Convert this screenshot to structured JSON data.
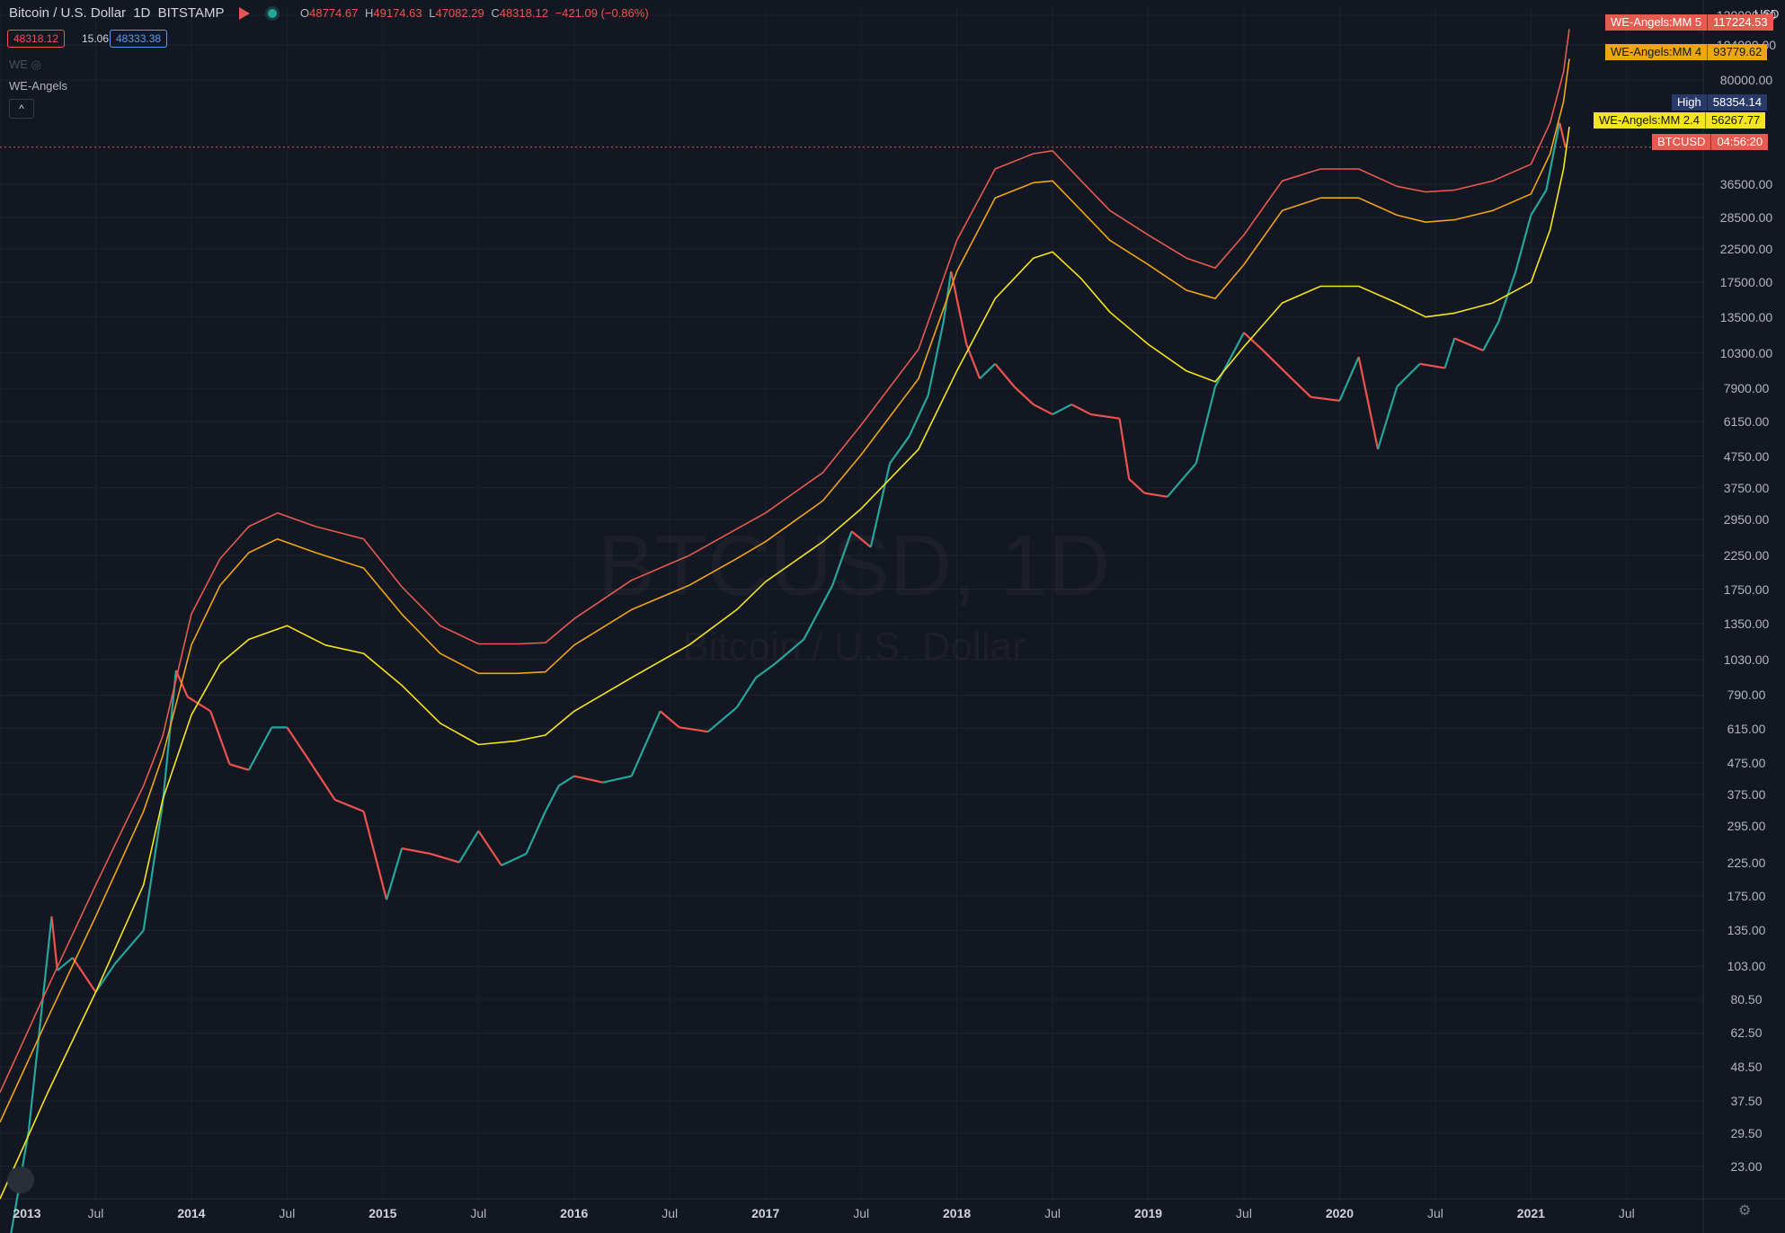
{
  "header": {
    "symbol_title": "Bitcoin / U.S. Dollar",
    "interval": "1D",
    "exchange": "BITSTAMP",
    "ohlc": {
      "open_label": "O",
      "open": "48774.67",
      "high_label": "H",
      "high": "49174.63",
      "low_label": "L",
      "low": "47082.29",
      "close_label": "C",
      "close": "48318.12",
      "change": "−421.09 (−0.86%)"
    },
    "bid": "48318.12",
    "spread": "15.06",
    "ask": "48333.38",
    "indicator_short": "WE",
    "indicator_name": "WE-Angels",
    "collapse_icon": "^"
  },
  "watermark": {
    "line1": "BTCUSD, 1D",
    "line2": "Bitcoin / U.S. Dollar"
  },
  "price_scale": {
    "currency": "USD",
    "labels": [
      "130000.00",
      "104000.00",
      "80000.00",
      "36500.00",
      "28500.00",
      "22500.00",
      "17500.00",
      "13500.00",
      "10300.00",
      "7900.00",
      "6150.00",
      "4750.00",
      "3750.00",
      "2950.00",
      "2250.00",
      "1750.00",
      "1350.00",
      "1030.00",
      "790.00",
      "615.00",
      "475.00",
      "375.00",
      "295.00",
      "225.00",
      "175.00",
      "135.00",
      "103.00",
      "80.50",
      "62.50",
      "48.50",
      "37.50",
      "29.50",
      "23.00"
    ]
  },
  "time_scale": {
    "labels": [
      {
        "text": "2013",
        "year": true,
        "t": 2013.0
      },
      {
        "text": "Jul",
        "year": false,
        "t": 2013.5
      },
      {
        "text": "2014",
        "year": true,
        "t": 2014.0
      },
      {
        "text": "Jul",
        "year": false,
        "t": 2014.5
      },
      {
        "text": "2015",
        "year": true,
        "t": 2015.0
      },
      {
        "text": "Jul",
        "year": false,
        "t": 2015.5
      },
      {
        "text": "2016",
        "year": true,
        "t": 2016.0
      },
      {
        "text": "Jul",
        "year": false,
        "t": 2016.5
      },
      {
        "text": "2017",
        "year": true,
        "t": 2017.0
      },
      {
        "text": "Jul",
        "year": false,
        "t": 2017.5
      },
      {
        "text": "2018",
        "year": true,
        "t": 2018.0
      },
      {
        "text": "Jul",
        "year": false,
        "t": 2018.5
      },
      {
        "text": "2019",
        "year": true,
        "t": 2019.0
      },
      {
        "text": "Jul",
        "year": false,
        "t": 2019.5
      },
      {
        "text": "2020",
        "year": true,
        "t": 2020.0
      },
      {
        "text": "Jul",
        "year": false,
        "t": 2020.5
      },
      {
        "text": "2021",
        "year": true,
        "t": 2021.0
      },
      {
        "text": "Jul",
        "year": false,
        "t": 2021.5
      }
    ]
  },
  "tags": {
    "mm5": {
      "name": "WE-Angels:MM 5",
      "value": "117224.53"
    },
    "mm4": {
      "name": "WE-Angels:MM 4",
      "value": "93779.62"
    },
    "high": {
      "name": "High",
      "value": "58354.14"
    },
    "mm24": {
      "name": "WE-Angels:MM 2.4",
      "value": "56267.77"
    },
    "btc": {
      "name": "BTCUSD",
      "value": "04:56:20"
    }
  },
  "colors": {
    "background": "#131722",
    "grid": "#1e222d",
    "mm5": "#e55b50",
    "mm4": "#f0a518",
    "mm24": "#f5e51f",
    "candle_up": "#26a69a",
    "candle_down": "#ef5350",
    "price_line": "#e55b50"
  },
  "chart_data": {
    "type": "line",
    "title": "Bitcoin / U.S. Dollar",
    "scale": "log",
    "ylim": [
      18,
      140000
    ],
    "xlim": [
      2013.0,
      2021.9
    ],
    "grid": true,
    "series": [
      {
        "name": "BTCUSD",
        "role": "price",
        "points": [
          [
            2013.05,
            13
          ],
          [
            2013.15,
            30
          ],
          [
            2013.27,
            150
          ],
          [
            2013.3,
            100
          ],
          [
            2013.38,
            110
          ],
          [
            2013.5,
            85
          ],
          [
            2013.6,
            105
          ],
          [
            2013.75,
            135
          ],
          [
            2013.85,
            350
          ],
          [
            2013.92,
            950
          ],
          [
            2013.98,
            780
          ],
          [
            2014.1,
            700
          ],
          [
            2014.2,
            470
          ],
          [
            2014.3,
            450
          ],
          [
            2014.42,
            620
          ],
          [
            2014.5,
            620
          ],
          [
            2014.6,
            500
          ],
          [
            2014.75,
            360
          ],
          [
            2014.9,
            330
          ],
          [
            2015.02,
            170
          ],
          [
            2015.1,
            250
          ],
          [
            2015.25,
            240
          ],
          [
            2015.4,
            225
          ],
          [
            2015.5,
            285
          ],
          [
            2015.62,
            220
          ],
          [
            2015.75,
            240
          ],
          [
            2015.85,
            330
          ],
          [
            2015.92,
            400
          ],
          [
            2016.0,
            430
          ],
          [
            2016.15,
            410
          ],
          [
            2016.3,
            430
          ],
          [
            2016.45,
            700
          ],
          [
            2016.55,
            620
          ],
          [
            2016.7,
            600
          ],
          [
            2016.85,
            720
          ],
          [
            2016.95,
            900
          ],
          [
            2017.05,
            1000
          ],
          [
            2017.2,
            1200
          ],
          [
            2017.35,
            1800
          ],
          [
            2017.45,
            2700
          ],
          [
            2017.55,
            2400
          ],
          [
            2017.65,
            4500
          ],
          [
            2017.75,
            5500
          ],
          [
            2017.85,
            7500
          ],
          [
            2017.93,
            13000
          ],
          [
            2017.97,
            19000
          ],
          [
            2018.05,
            11000
          ],
          [
            2018.12,
            8500
          ],
          [
            2018.2,
            9500
          ],
          [
            2018.3,
            8000
          ],
          [
            2018.4,
            7000
          ],
          [
            2018.5,
            6500
          ],
          [
            2018.6,
            7000
          ],
          [
            2018.7,
            6500
          ],
          [
            2018.85,
            6300
          ],
          [
            2018.9,
            4000
          ],
          [
            2018.98,
            3600
          ],
          [
            2019.1,
            3500
          ],
          [
            2019.25,
            4500
          ],
          [
            2019.35,
            8000
          ],
          [
            2019.5,
            12000
          ],
          [
            2019.6,
            10500
          ],
          [
            2019.75,
            8500
          ],
          [
            2019.85,
            7400
          ],
          [
            2020.0,
            7200
          ],
          [
            2020.1,
            10000
          ],
          [
            2020.2,
            5000
          ],
          [
            2020.3,
            8000
          ],
          [
            2020.42,
            9500
          ],
          [
            2020.55,
            9200
          ],
          [
            2020.6,
            11500
          ],
          [
            2020.75,
            10500
          ],
          [
            2020.83,
            13000
          ],
          [
            2020.92,
            19000
          ],
          [
            2021.0,
            29000
          ],
          [
            2021.08,
            35000
          ],
          [
            2021.12,
            47000
          ],
          [
            2021.15,
            58000
          ],
          [
            2021.18,
            48318
          ]
        ]
      },
      {
        "name": "WE-Angels:MM 2.4",
        "points": [
          [
            2013.0,
            18
          ],
          [
            2013.25,
            40
          ],
          [
            2013.5,
            85
          ],
          [
            2013.75,
            190
          ],
          [
            2013.85,
            360
          ],
          [
            2014.0,
            680
          ],
          [
            2014.15,
            1000
          ],
          [
            2014.3,
            1200
          ],
          [
            2014.5,
            1330
          ],
          [
            2014.7,
            1150
          ],
          [
            2014.9,
            1080
          ],
          [
            2015.1,
            850
          ],
          [
            2015.3,
            640
          ],
          [
            2015.5,
            545
          ],
          [
            2015.7,
            560
          ],
          [
            2015.85,
            585
          ],
          [
            2016.0,
            700
          ],
          [
            2016.3,
            900
          ],
          [
            2016.6,
            1150
          ],
          [
            2016.85,
            1500
          ],
          [
            2017.0,
            1850
          ],
          [
            2017.3,
            2500
          ],
          [
            2017.5,
            3200
          ],
          [
            2017.8,
            5000
          ],
          [
            2018.0,
            9000
          ],
          [
            2018.2,
            15500
          ],
          [
            2018.4,
            21000
          ],
          [
            2018.5,
            22000
          ],
          [
            2018.65,
            18000
          ],
          [
            2018.8,
            14000
          ],
          [
            2019.0,
            11000
          ],
          [
            2019.2,
            9000
          ],
          [
            2019.35,
            8300
          ],
          [
            2019.5,
            10800
          ],
          [
            2019.7,
            15000
          ],
          [
            2019.9,
            17000
          ],
          [
            2020.1,
            17000
          ],
          [
            2020.3,
            15000
          ],
          [
            2020.45,
            13500
          ],
          [
            2020.6,
            13900
          ],
          [
            2020.8,
            15000
          ],
          [
            2021.0,
            17500
          ],
          [
            2021.1,
            26000
          ],
          [
            2021.17,
            41000
          ],
          [
            2021.2,
            56267.77
          ]
        ]
      },
      {
        "name": "WE-Angels:MM 4",
        "points": [
          [
            2013.0,
            32
          ],
          [
            2013.25,
            70
          ],
          [
            2013.5,
            150
          ],
          [
            2013.75,
            330
          ],
          [
            2013.85,
            500
          ],
          [
            2014.0,
            1150
          ],
          [
            2014.15,
            1800
          ],
          [
            2014.3,
            2300
          ],
          [
            2014.45,
            2550
          ],
          [
            2014.65,
            2300
          ],
          [
            2014.9,
            2050
          ],
          [
            2015.1,
            1450
          ],
          [
            2015.3,
            1080
          ],
          [
            2015.5,
            930
          ],
          [
            2015.7,
            930
          ],
          [
            2015.85,
            940
          ],
          [
            2016.0,
            1150
          ],
          [
            2016.3,
            1500
          ],
          [
            2016.6,
            1800
          ],
          [
            2016.85,
            2200
          ],
          [
            2017.0,
            2500
          ],
          [
            2017.3,
            3400
          ],
          [
            2017.5,
            4800
          ],
          [
            2017.8,
            8500
          ],
          [
            2018.0,
            19000
          ],
          [
            2018.2,
            33000
          ],
          [
            2018.4,
            37000
          ],
          [
            2018.5,
            37500
          ],
          [
            2018.65,
            30000
          ],
          [
            2018.8,
            24000
          ],
          [
            2019.0,
            20000
          ],
          [
            2019.2,
            16500
          ],
          [
            2019.35,
            15500
          ],
          [
            2019.5,
            20000
          ],
          [
            2019.7,
            30000
          ],
          [
            2019.9,
            33000
          ],
          [
            2020.1,
            33000
          ],
          [
            2020.3,
            29000
          ],
          [
            2020.45,
            27500
          ],
          [
            2020.6,
            28000
          ],
          [
            2020.8,
            30000
          ],
          [
            2021.0,
            34000
          ],
          [
            2021.1,
            46000
          ],
          [
            2021.17,
            68000
          ],
          [
            2021.2,
            93779.62
          ]
        ]
      },
      {
        "name": "WE-Angels:MM 5",
        "points": [
          [
            2013.0,
            40
          ],
          [
            2013.25,
            88
          ],
          [
            2013.5,
            190
          ],
          [
            2013.75,
            400
          ],
          [
            2013.85,
            580
          ],
          [
            2014.0,
            1450
          ],
          [
            2014.15,
            2200
          ],
          [
            2014.3,
            2800
          ],
          [
            2014.45,
            3100
          ],
          [
            2014.65,
            2800
          ],
          [
            2014.9,
            2550
          ],
          [
            2015.1,
            1780
          ],
          [
            2015.3,
            1330
          ],
          [
            2015.5,
            1160
          ],
          [
            2015.7,
            1160
          ],
          [
            2015.85,
            1170
          ],
          [
            2016.0,
            1400
          ],
          [
            2016.3,
            1870
          ],
          [
            2016.6,
            2250
          ],
          [
            2016.85,
            2750
          ],
          [
            2017.0,
            3100
          ],
          [
            2017.3,
            4200
          ],
          [
            2017.5,
            6000
          ],
          [
            2017.8,
            10600
          ],
          [
            2018.0,
            24000
          ],
          [
            2018.2,
            41000
          ],
          [
            2018.4,
            46000
          ],
          [
            2018.5,
            47000
          ],
          [
            2018.65,
            37500
          ],
          [
            2018.8,
            30000
          ],
          [
            2019.0,
            25000
          ],
          [
            2019.2,
            21000
          ],
          [
            2019.35,
            19500
          ],
          [
            2019.5,
            25000
          ],
          [
            2019.7,
            37500
          ],
          [
            2019.9,
            41000
          ],
          [
            2020.1,
            41000
          ],
          [
            2020.3,
            36000
          ],
          [
            2020.45,
            34500
          ],
          [
            2020.6,
            35000
          ],
          [
            2020.8,
            37500
          ],
          [
            2021.0,
            42500
          ],
          [
            2021.1,
            58000
          ],
          [
            2021.17,
            85000
          ],
          [
            2021.2,
            117224.53
          ]
        ]
      }
    ]
  }
}
